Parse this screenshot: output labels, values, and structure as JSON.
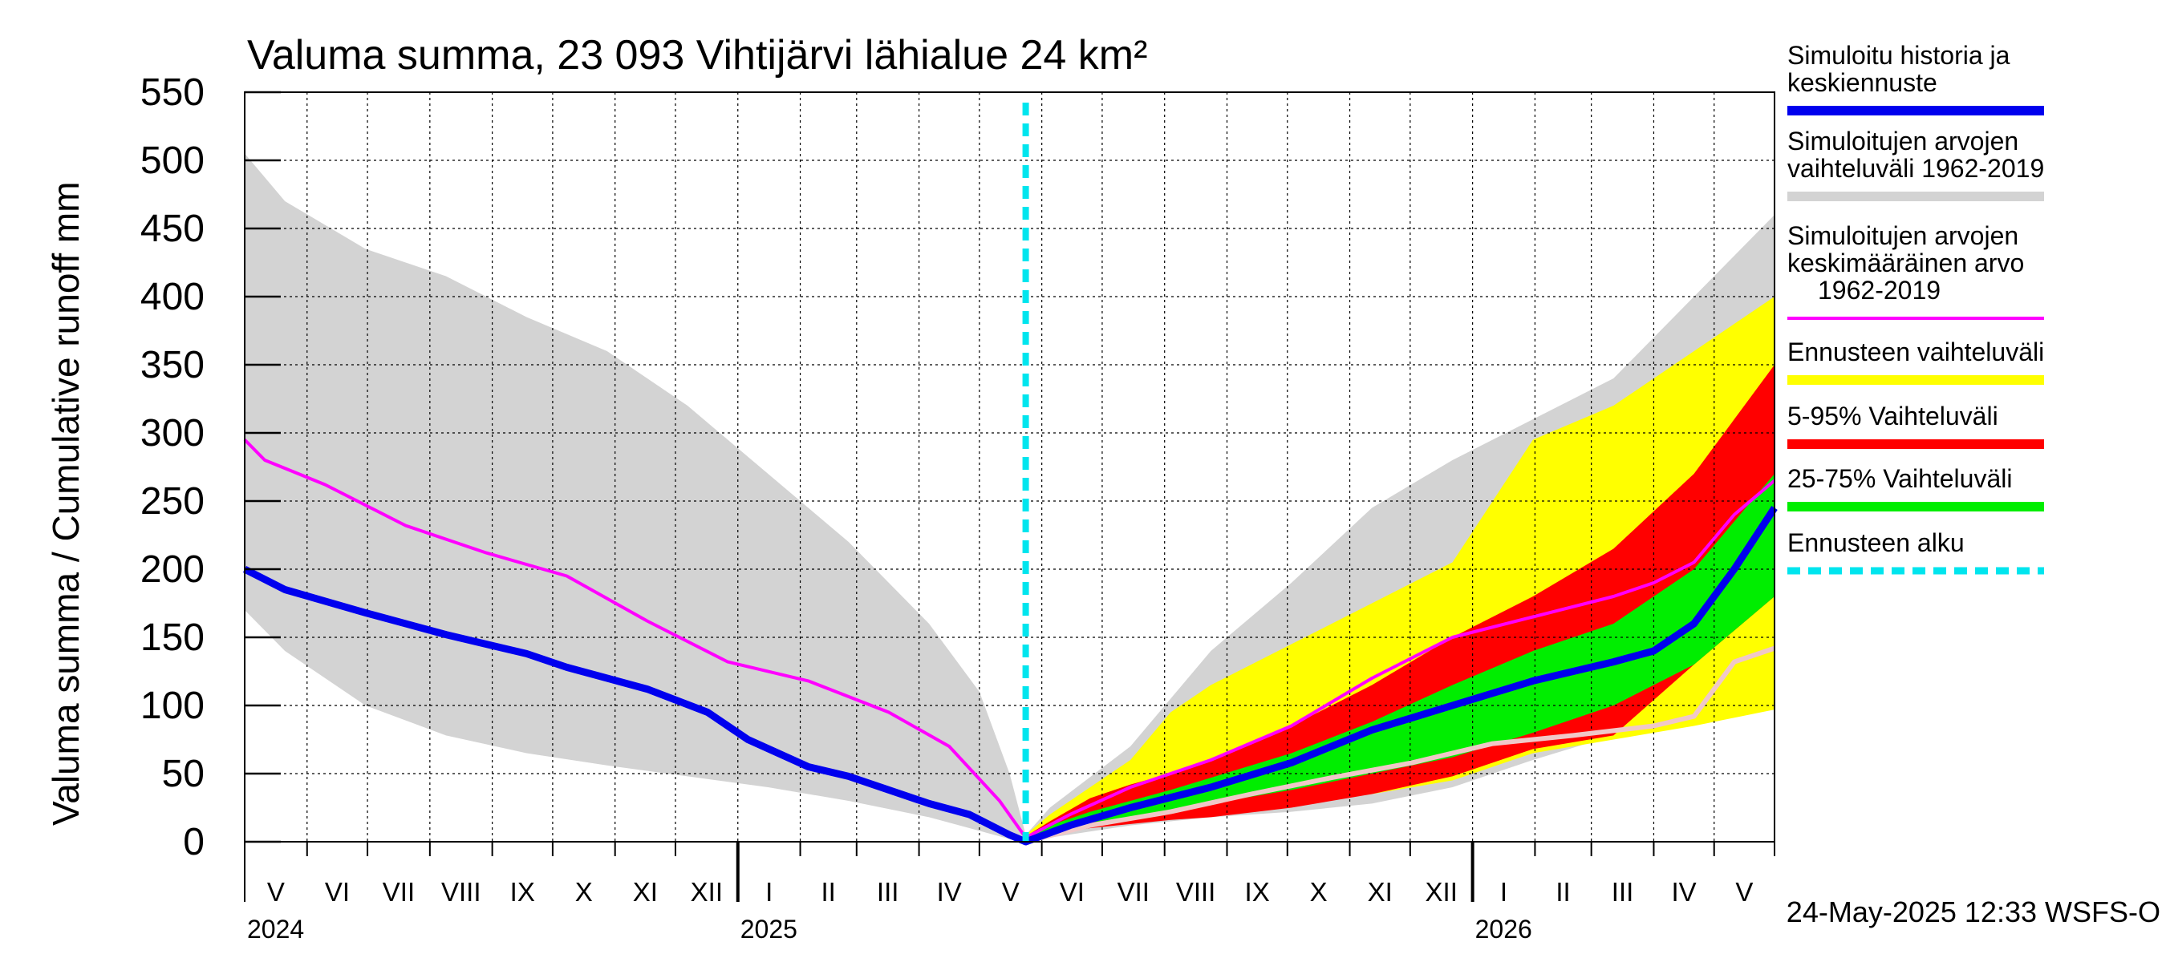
{
  "chart_data": {
    "type": "area",
    "title": "Valuma summa, 23 093 Vihtijärvi lähialue 24 km²",
    "ylabel": "Valuma summa / Cumulative runoff    mm",
    "ylim": [
      0,
      550
    ],
    "yticks": [
      0,
      50,
      100,
      150,
      200,
      250,
      300,
      350,
      400,
      450,
      500,
      550
    ],
    "x_unit": "days since 2024-05-01",
    "xlim": [
      0,
      760
    ],
    "forecast_start": 388,
    "months": [
      {
        "label": "V",
        "start": 0,
        "end": 31
      },
      {
        "label": "VI",
        "start": 31,
        "end": 61
      },
      {
        "label": "VII",
        "start": 61,
        "end": 92
      },
      {
        "label": "VIII",
        "start": 92,
        "end": 123
      },
      {
        "label": "IX",
        "start": 123,
        "end": 153
      },
      {
        "label": "X",
        "start": 153,
        "end": 184
      },
      {
        "label": "XI",
        "start": 184,
        "end": 214
      },
      {
        "label": "XII",
        "start": 214,
        "end": 245
      },
      {
        "label": "I",
        "start": 245,
        "end": 276
      },
      {
        "label": "II",
        "start": 276,
        "end": 304
      },
      {
        "label": "III",
        "start": 304,
        "end": 335
      },
      {
        "label": "IV",
        "start": 335,
        "end": 365
      },
      {
        "label": "V",
        "start": 365,
        "end": 396
      },
      {
        "label": "VI",
        "start": 396,
        "end": 426
      },
      {
        "label": "VII",
        "start": 426,
        "end": 457
      },
      {
        "label": "VIII",
        "start": 457,
        "end": 488
      },
      {
        "label": "IX",
        "start": 488,
        "end": 518
      },
      {
        "label": "X",
        "start": 518,
        "end": 549
      },
      {
        "label": "XI",
        "start": 549,
        "end": 579
      },
      {
        "label": "XII",
        "start": 579,
        "end": 610
      },
      {
        "label": "I",
        "start": 610,
        "end": 641
      },
      {
        "label": "II",
        "start": 641,
        "end": 669
      },
      {
        "label": "III",
        "start": 669,
        "end": 700
      },
      {
        "label": "IV",
        "start": 700,
        "end": 730
      },
      {
        "label": "V",
        "start": 730,
        "end": 760
      }
    ],
    "years": [
      {
        "label": "2024",
        "at": 0
      },
      {
        "label": "2025",
        "at": 245
      },
      {
        "label": "2026",
        "at": 610
      }
    ],
    "series": [
      {
        "name": "Simuloitujen arvojen vaihteluväli 1962-2019",
        "kind": "band",
        "color": "#d3d3d3",
        "x": [
          0,
          20,
          60,
          100,
          140,
          180,
          220,
          260,
          300,
          340,
          365,
          380,
          388,
          400,
          440,
          480,
          520,
          560,
          600,
          640,
          680,
          720,
          760
        ],
        "upper": [
          505,
          470,
          435,
          415,
          385,
          360,
          320,
          270,
          220,
          160,
          110,
          50,
          5,
          25,
          70,
          140,
          190,
          245,
          280,
          310,
          340,
          400,
          460
        ],
        "lower": [
          170,
          140,
          100,
          78,
          65,
          56,
          48,
          40,
          30,
          18,
          8,
          2,
          0,
          3,
          12,
          18,
          22,
          28,
          40,
          60,
          78,
          90,
          100
        ]
      },
      {
        "name": "Ennusteen vaihteluväli",
        "kind": "band",
        "color": "#ffff00",
        "x": [
          388,
          400,
          420,
          440,
          460,
          480,
          520,
          560,
          600,
          640,
          680,
          720,
          760
        ],
        "upper": [
          5,
          20,
          40,
          60,
          95,
          115,
          145,
          175,
          205,
          295,
          320,
          360,
          400
        ],
        "lower": [
          0,
          6,
          12,
          15,
          18,
          20,
          27,
          35,
          45,
          65,
          75,
          85,
          97
        ]
      },
      {
        "name": "5-95% Vaihteluväli",
        "kind": "band",
        "color": "#ff0000",
        "x": [
          388,
          400,
          420,
          440,
          460,
          480,
          520,
          560,
          600,
          640,
          680,
          720,
          760
        ],
        "upper": [
          4,
          15,
          32,
          42,
          50,
          60,
          85,
          115,
          150,
          180,
          215,
          270,
          350
        ],
        "lower": [
          0,
          5,
          10,
          13,
          16,
          18,
          25,
          35,
          48,
          68,
          78,
          130,
          180
        ]
      },
      {
        "name": "25-75% Vaihteluväli",
        "kind": "band",
        "color": "#00ee00",
        "x": [
          388,
          400,
          420,
          440,
          460,
          480,
          520,
          560,
          600,
          640,
          680,
          720,
          760
        ],
        "upper": [
          3,
          12,
          22,
          30,
          38,
          47,
          65,
          88,
          115,
          140,
          160,
          200,
          270
        ],
        "lower": [
          0,
          7,
          14,
          18,
          22,
          28,
          38,
          50,
          62,
          80,
          100,
          130,
          180
        ]
      },
      {
        "name": "Alin simuloitu",
        "kind": "line",
        "color": "#f0c8c8",
        "x": [
          388,
          420,
          460,
          500,
          540,
          580,
          620,
          660,
          700,
          720,
          740,
          760
        ],
        "y": [
          0,
          12,
          22,
          35,
          47,
          58,
          72,
          78,
          85,
          92,
          132,
          142
        ]
      },
      {
        "name": "Simuloitujen arvojen keskimääräinen arvo 1962-2019",
        "kind": "line",
        "color": "#ff00ff",
        "x": [
          0,
          10,
          40,
          80,
          120,
          160,
          200,
          240,
          280,
          320,
          350,
          375,
          388,
          410,
          440,
          480,
          520,
          560,
          600,
          640,
          680,
          700,
          720,
          740,
          760
        ],
        "y": [
          295,
          280,
          262,
          232,
          212,
          195,
          162,
          132,
          118,
          95,
          70,
          30,
          3,
          20,
          40,
          60,
          85,
          120,
          150,
          165,
          180,
          190,
          205,
          240,
          265
        ]
      },
      {
        "name": "Simuloitu historia ja keskiennuste",
        "kind": "line",
        "color": "#0000ee",
        "x": [
          0,
          20,
          60,
          100,
          140,
          160,
          200,
          230,
          250,
          280,
          300,
          320,
          340,
          360,
          380,
          388,
          410,
          440,
          480,
          520,
          560,
          600,
          640,
          680,
          700,
          720,
          740,
          760
        ],
        "y": [
          200,
          185,
          168,
          152,
          138,
          128,
          112,
          95,
          75,
          55,
          48,
          38,
          28,
          20,
          5,
          0,
          12,
          25,
          40,
          58,
          82,
          100,
          118,
          132,
          140,
          160,
          200,
          245
        ]
      }
    ]
  },
  "legend": {
    "items": [
      {
        "label": "Simuloitu historia ja keskiennuste",
        "color": "#0000ee",
        "style": "solid"
      },
      {
        "label": "Simuloitujen arvojen vaihteluväli 1962-2019",
        "color": "#d3d3d3",
        "style": "solid"
      },
      {
        "label": "Simuloitujen arvojen keskimääräinen arvo 1962-2019",
        "color": "#ff00ff",
        "style": "solid"
      },
      {
        "label": "Ennusteen vaihteluväli",
        "color": "#ffff00",
        "style": "solid"
      },
      {
        "label": "5-95% Vaihteluväli",
        "color": "#ff0000",
        "style": "solid"
      },
      {
        "label": "25-75% Vaihteluväli",
        "color": "#00ee00",
        "style": "solid"
      },
      {
        "label": "Ennusteen alku",
        "color": "#00e5ee",
        "style": "dashed"
      }
    ]
  },
  "footer": {
    "timestamp": "24-May-2025 12:33 WSFS-O"
  }
}
